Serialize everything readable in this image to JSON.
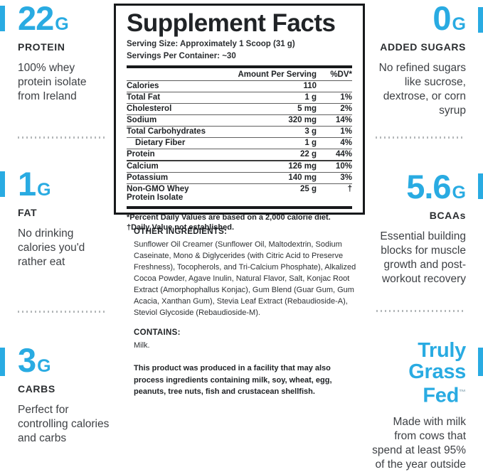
{
  "colors": {
    "accent_blue": "#29ABE2",
    "heading_dark": "#2b2e31",
    "body_gray": "#3e4145",
    "panel_border": "#17191b"
  },
  "left_column": {
    "sections": [
      {
        "value": "22",
        "unit": "G",
        "heading": "PROTEIN",
        "body": "100% whey\nprotein isolate\nfrom Ireland"
      },
      {
        "value": "1",
        "unit": "G",
        "heading": "FAT",
        "body": "No drinking\ncalories you'd\nrather eat"
      },
      {
        "value": "3",
        "unit": "G",
        "heading": "CARBS",
        "body": "Perfect for\ncontrolling calories\nand carbs"
      }
    ]
  },
  "right_column": {
    "sections": [
      {
        "value": "0",
        "unit": "G",
        "heading": "ADDED SUGARS",
        "body": "No refined sugars\nlike sucrose,\ndextrose, or corn\nsyrup"
      },
      {
        "value": "5.6",
        "unit": "G",
        "heading": "BCAAs",
        "body": "Essential building\nblocks for muscle\ngrowth and post-\nworkout recovery"
      },
      {
        "title": "Truly\nGrass Fed",
        "trademark": "™",
        "body": "Made with milk\nfrom cows that\nspend at least 95%\nof the year outside"
      }
    ]
  },
  "panel": {
    "title": "Supplement Facts",
    "serving_size": "Serving Size: Approximately 1 Scoop (31 g)",
    "servings_per_container": "Servings Per Container: ~30",
    "col_amount": "Amount Per Serving",
    "col_dv": "%DV*",
    "rows": [
      {
        "name": "Calories",
        "amount": "110",
        "dv": ""
      },
      {
        "name": "Total Fat",
        "amount": "1 g",
        "dv": "1%"
      },
      {
        "name": "Cholesterol",
        "amount": "5 mg",
        "dv": "2%"
      },
      {
        "name": "Sodium",
        "amount": "320 mg",
        "dv": "14%"
      },
      {
        "name": "Total Carbohydrates",
        "amount": "3 g",
        "dv": "1%"
      },
      {
        "name": "Dietary Fiber",
        "amount": "1 g",
        "dv": "4%"
      },
      {
        "name": "Protein",
        "amount": "22 g",
        "dv": "44%"
      },
      {
        "name": "Calcium",
        "amount": "126 mg",
        "dv": "10%"
      },
      {
        "name": "Potassium",
        "amount": "140 mg",
        "dv": "3%"
      },
      {
        "name": "Non-GMO Whey Protein Isolate",
        "amount": "25 g",
        "dv": "†"
      }
    ],
    "footnote1": "*Percent Daily Values are based on a 2,000 calorie diet.",
    "footnote2": "†Daily Value not established."
  },
  "other_ingredients": {
    "heading": "OTHER INGREDIENTS:",
    "body": "Sunflower Oil Creamer (Sunflower Oil, Maltodextrin, Sodium Caseinate, Mono & Diglycerides (with Citric Acid to Preserve Freshness), Tocopherols, and Tri-Calcium Phosphate), Alkalized Cocoa Powder, Agave Inulin, Natural Flavor, Salt, Konjac Root Extract (Amorphophallus Konjac), Gum Blend (Guar Gum, Gum Acacia, Xanthan Gum), Stevia Leaf Extract (Rebaudioside-A), Steviol Glycoside (Rebaudioside-M)."
  },
  "contains": {
    "heading": "CONTAINS:",
    "body": "Milk."
  },
  "facility_statement": "This product was produced in a facility that may also process ingredients containing milk, soy, wheat, egg, peanuts, tree nuts, fish and crustacean shellfish."
}
